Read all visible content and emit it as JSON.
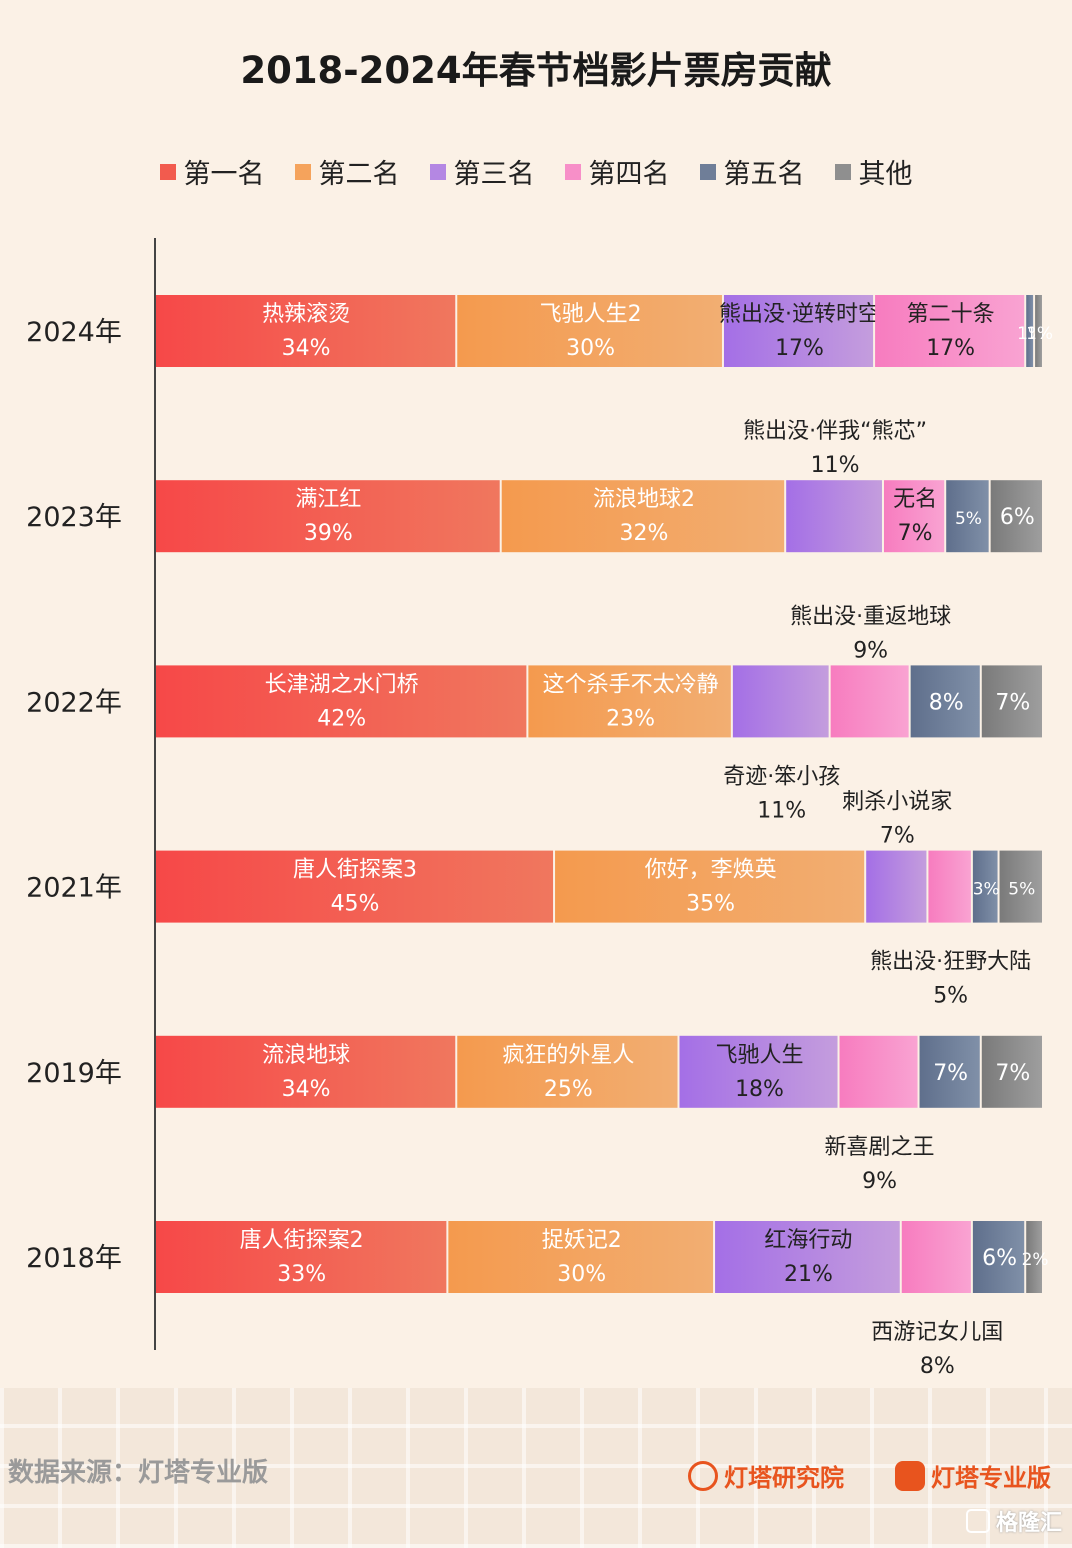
{
  "chart_data": {
    "type": "bar",
    "orientation": "horizontal",
    "stacked": true,
    "normalized": true,
    "title": "2018-2024年春节档影片票房贡献",
    "legend_position": "top",
    "categories": [
      "2024年",
      "2023年",
      "2022年",
      "2021年",
      "2019年",
      "2018年"
    ],
    "series": [
      {
        "name": "第一名",
        "color": "#f25b4e",
        "values": [
          34,
          39,
          42,
          45,
          34,
          33
        ]
      },
      {
        "name": "第二名",
        "color": "#f5a35c",
        "values": [
          30,
          32,
          23,
          35,
          25,
          30
        ]
      },
      {
        "name": "第三名",
        "color": "#b487e3",
        "values": [
          17,
          11,
          11,
          7,
          18,
          21
        ]
      },
      {
        "name": "第四名",
        "color": "#f78fc8",
        "values": [
          17,
          7,
          9,
          5,
          9,
          8
        ]
      },
      {
        "name": "第五名",
        "color": "#6f7e98",
        "values": [
          1,
          5,
          8,
          3,
          7,
          6
        ]
      },
      {
        "name": "其他",
        "color": "#8f8f8f",
        "values": [
          1,
          6,
          7,
          5,
          7,
          2
        ]
      }
    ],
    "annotations": [
      [
        {
          "film": "热辣滚烫",
          "pct": "34%",
          "pos": "inside"
        },
        {
          "film": "飞驰人生2",
          "pct": "30%",
          "pos": "inside"
        },
        {
          "film": "熊出没·逆转时空",
          "pct": "17%",
          "pos": "inside"
        },
        {
          "film": "第二十条",
          "pct": "17%",
          "pos": "inside"
        },
        {
          "film": "",
          "pct": "1%",
          "pos": "inside"
        },
        {
          "film": "",
          "pct": "1%",
          "pos": "inside"
        }
      ],
      [
        {
          "film": "满江红",
          "pct": "39%",
          "pos": "inside"
        },
        {
          "film": "流浪地球2",
          "pct": "32%",
          "pos": "inside"
        },
        {
          "film": "熊出没·伴我“熊芯”",
          "pct": "11%",
          "pos": "above"
        },
        {
          "film": "无名",
          "pct": "7%",
          "pos": "inside"
        },
        {
          "film": "",
          "pct": "5%",
          "pos": "inside"
        },
        {
          "film": "",
          "pct": "6%",
          "pos": "inside"
        }
      ],
      [
        {
          "film": "长津湖之水门桥",
          "pct": "42%",
          "pos": "inside"
        },
        {
          "film": "这个杀手不太冷静",
          "pct": "23%",
          "pos": "inside"
        },
        {
          "film": "奇迹·笨小孩",
          "pct": "11%",
          "pos": "below"
        },
        {
          "film": "熊出没·重返地球",
          "pct": "9%",
          "pos": "above"
        },
        {
          "film": "",
          "pct": "8%",
          "pos": "inside"
        },
        {
          "film": "",
          "pct": "7%",
          "pos": "inside"
        }
      ],
      [
        {
          "film": "唐人街探案3",
          "pct": "45%",
          "pos": "inside"
        },
        {
          "film": "你好，李焕英",
          "pct": "35%",
          "pos": "inside"
        },
        {
          "film": "刺杀小说家",
          "pct": "7%",
          "pos": "above"
        },
        {
          "film": "熊出没·狂野大陆",
          "pct": "5%",
          "pos": "below"
        },
        {
          "film": "",
          "pct": "3%",
          "pos": "inside"
        },
        {
          "film": "",
          "pct": "5%",
          "pos": "inside"
        }
      ],
      [
        {
          "film": "流浪地球",
          "pct": "34%",
          "pos": "inside"
        },
        {
          "film": "疯狂的外星人",
          "pct": "25%",
          "pos": "inside"
        },
        {
          "film": "飞驰人生",
          "pct": "18%",
          "pos": "inside"
        },
        {
          "film": "新喜剧之王",
          "pct": "9%",
          "pos": "below"
        },
        {
          "film": "",
          "pct": "7%",
          "pos": "inside"
        },
        {
          "film": "",
          "pct": "7%",
          "pos": "inside"
        }
      ],
      [
        {
          "film": "唐人街探案2",
          "pct": "33%",
          "pos": "inside"
        },
        {
          "film": "捉妖记2",
          "pct": "30%",
          "pos": "inside"
        },
        {
          "film": "红海行动",
          "pct": "21%",
          "pos": "inside"
        },
        {
          "film": "西游记女儿国",
          "pct": "8%",
          "pos": "below"
        },
        {
          "film": "",
          "pct": "6%",
          "pos": "inside"
        },
        {
          "film": "",
          "pct": "2%",
          "pos": "inside"
        }
      ]
    ]
  },
  "footer": {
    "source": "数据来源：灯塔专业版",
    "brand_research": "灯塔研究院",
    "brand_pro": "灯塔专业版",
    "watermark": "格隆汇"
  }
}
